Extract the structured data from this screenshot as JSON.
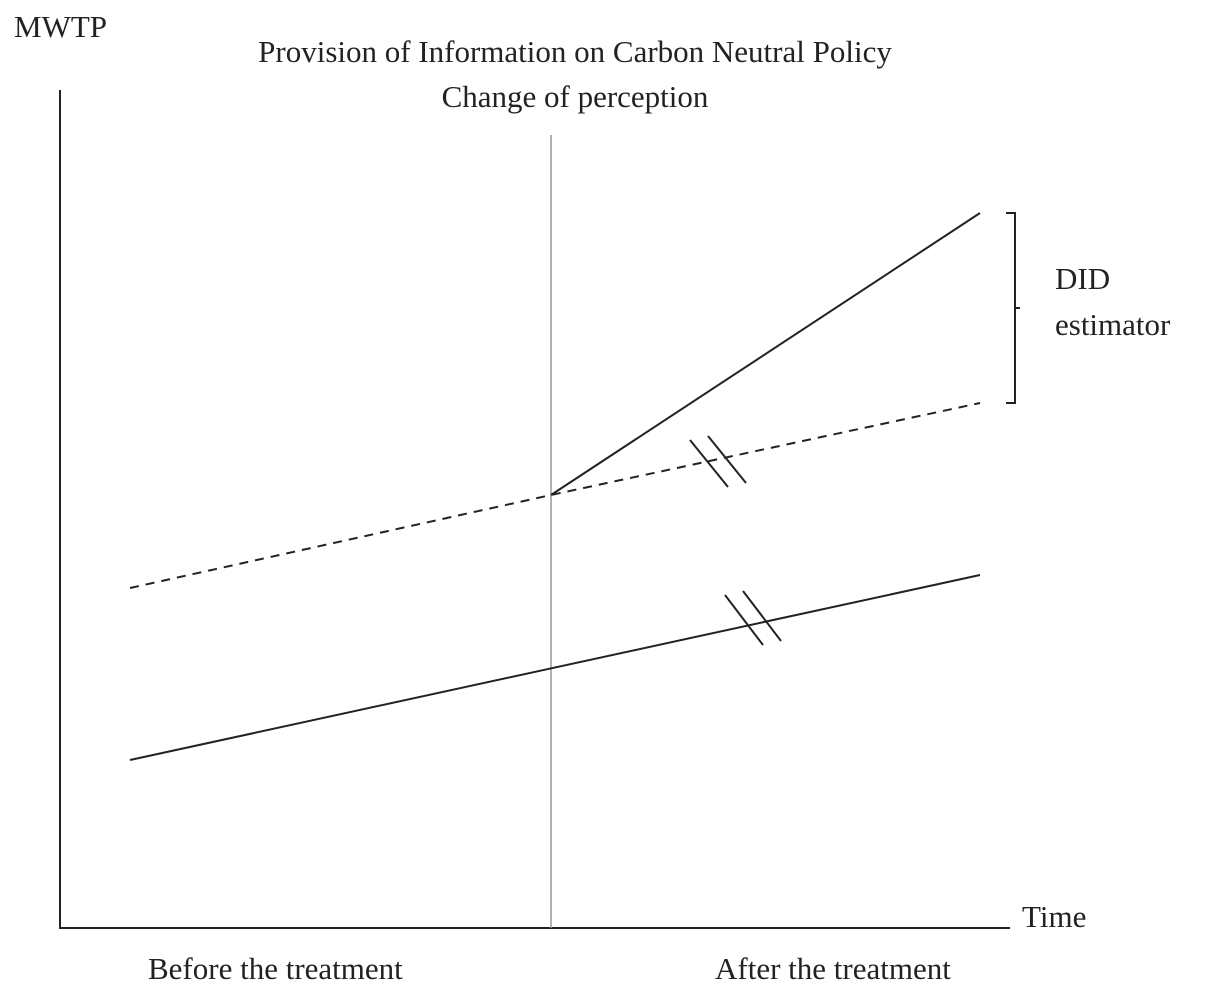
{
  "y_axis_label": "MWTP",
  "x_axis_label": "Time",
  "title": {
    "line1": "Provision  of Information  on Carbon Neutral Policy",
    "line2": "Change of perception"
  },
  "estimator_label": {
    "line1": "DID",
    "line2": "estimator"
  },
  "periods": [
    "Before the treatment",
    "After the treatment"
  ]
}
